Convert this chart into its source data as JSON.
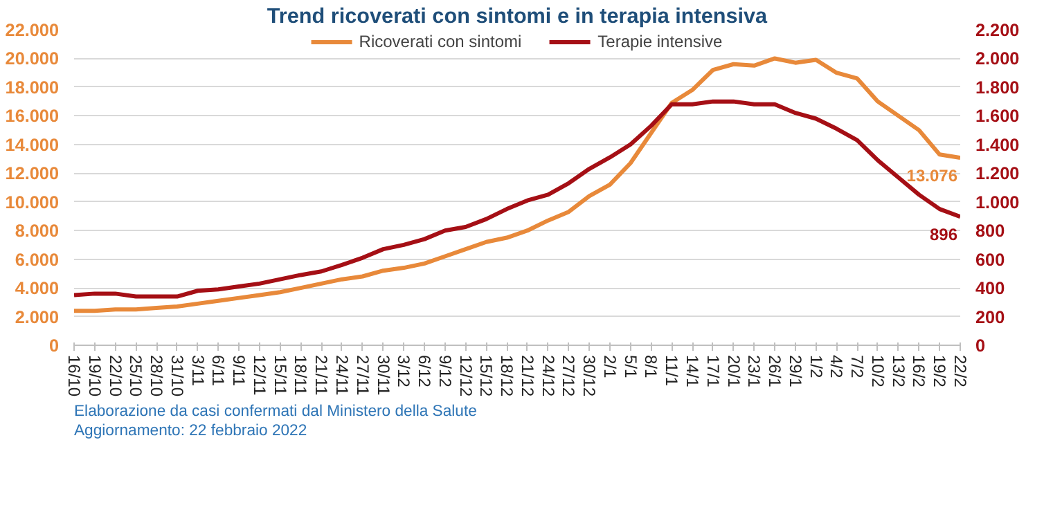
{
  "chart_data": {
    "type": "line",
    "title": "Trend ricoverati con sintomi e in terapia intensiva",
    "x": [
      "2021-10-16",
      "2021-10-19",
      "2021-10-22",
      "2021-10-25",
      "2021-10-28",
      "2021-10-31",
      "2021-11-03",
      "2021-11-06",
      "2021-11-09",
      "2021-11-12",
      "2021-11-15",
      "2021-11-18",
      "2021-11-21",
      "2021-11-24",
      "2021-11-27",
      "2021-11-30",
      "2021-12-03",
      "2021-12-06",
      "2021-12-09",
      "2021-12-12",
      "2021-12-15",
      "2021-12-18",
      "2021-12-21",
      "2021-12-24",
      "2021-12-27",
      "2021-12-30",
      "2022-01-02",
      "2022-01-05",
      "2022-01-08",
      "2022-01-11",
      "2022-01-14",
      "2022-01-17",
      "2022-01-20",
      "2022-01-23",
      "2022-01-26",
      "2022-01-29",
      "2022-02-01",
      "2022-02-04",
      "2022-02-07",
      "2022-02-10",
      "2022-02-13",
      "2022-02-16",
      "2022-02-19",
      "2022-02-22"
    ],
    "series": [
      {
        "name": "Ricoverati con sintomi",
        "color": "#e8893a",
        "values": [
          2400,
          2400,
          2500,
          2500,
          2600,
          2700,
          2900,
          3100,
          3300,
          3500,
          3700,
          4000,
          4300,
          4600,
          4800,
          5200,
          5400,
          5700,
          6200,
          6700,
          7200,
          7500,
          8000,
          8700,
          9300,
          10400,
          11200,
          12700,
          14800,
          16900,
          17800,
          19200,
          19600,
          19500,
          20000,
          19700,
          19900,
          19000,
          18600,
          17000,
          16000,
          15000,
          13300,
          13076
        ],
        "value_labels": [
          null,
          null,
          null,
          null,
          null,
          null,
          null,
          null,
          null,
          null,
          null,
          null,
          null,
          null,
          null,
          null,
          null,
          null,
          null,
          null,
          null,
          null,
          null,
          null,
          null,
          null,
          null,
          null,
          null,
          null,
          null,
          null,
          null,
          null,
          null,
          null,
          null,
          null,
          null,
          null,
          null,
          null,
          null,
          "13.076"
        ]
      },
      {
        "name": "Terapie intensive",
        "color": "#a50f15",
        "axis": "y2",
        "values": [
          350,
          360,
          360,
          340,
          340,
          340,
          380,
          390,
          410,
          430,
          460,
          490,
          515,
          560,
          610,
          670,
          700,
          740,
          800,
          825,
          880,
          950,
          1010,
          1050,
          1130,
          1230,
          1310,
          1400,
          1530,
          1680,
          1680,
          1700,
          1700,
          1680,
          1680,
          1620,
          1580,
          1510,
          1430,
          1290,
          1170,
          1050,
          950,
          896
        ],
        "value_labels": [
          null,
          null,
          null,
          null,
          null,
          null,
          null,
          null,
          null,
          null,
          null,
          null,
          null,
          null,
          null,
          null,
          null,
          null,
          null,
          null,
          null,
          null,
          null,
          null,
          null,
          null,
          null,
          null,
          null,
          null,
          null,
          null,
          null,
          null,
          null,
          null,
          null,
          null,
          null,
          null,
          null,
          null,
          null,
          "896"
        ]
      }
    ],
    "xlim": [
      "2021-10-16",
      "2022-02-22"
    ],
    "xticks": [
      {
        "value": "2021-10-16",
        "label": "16/10"
      },
      {
        "value": "2021-10-19",
        "label": "19/10"
      },
      {
        "value": "2021-10-22",
        "label": "22/10"
      },
      {
        "value": "2021-10-25",
        "label": "25/10"
      },
      {
        "value": "2021-10-28",
        "label": "28/10"
      },
      {
        "value": "2021-10-31",
        "label": "31/10"
      },
      {
        "value": "2021-11-03",
        "label": "3/11"
      },
      {
        "value": "2021-11-06",
        "label": "6/11"
      },
      {
        "value": "2021-11-09",
        "label": "9/11"
      },
      {
        "value": "2021-11-12",
        "label": "12/11"
      },
      {
        "value": "2021-11-15",
        "label": "15/11"
      },
      {
        "value": "2021-11-18",
        "label": "18/11"
      },
      {
        "value": "2021-11-21",
        "label": "21/11"
      },
      {
        "value": "2021-11-24",
        "label": "24/11"
      },
      {
        "value": "2021-11-27",
        "label": "27/11"
      },
      {
        "value": "2021-11-30",
        "label": "30/11"
      },
      {
        "value": "2021-12-03",
        "label": "3/12"
      },
      {
        "value": "2021-12-06",
        "label": "6/12"
      },
      {
        "value": "2021-12-09",
        "label": "9/12"
      },
      {
        "value": "2021-12-12",
        "label": "12/12"
      },
      {
        "value": "2021-12-15",
        "label": "15/12"
      },
      {
        "value": "2021-12-18",
        "label": "18/12"
      },
      {
        "value": "2021-12-21",
        "label": "21/12"
      },
      {
        "value": "2021-12-24",
        "label": "24/12"
      },
      {
        "value": "2021-12-27",
        "label": "27/12"
      },
      {
        "value": "2021-12-30",
        "label": "30/12"
      },
      {
        "value": "2022-01-02",
        "label": "2/1"
      },
      {
        "value": "2022-01-05",
        "label": "5/1"
      },
      {
        "value": "2022-01-08",
        "label": "8/1"
      },
      {
        "value": "2022-01-11",
        "label": "11/1"
      },
      {
        "value": "2022-01-14",
        "label": "14/1"
      },
      {
        "value": "2022-01-17",
        "label": "17/1"
      },
      {
        "value": "2022-01-20",
        "label": "20/1"
      },
      {
        "value": "2022-01-23",
        "label": "23/1"
      },
      {
        "value": "2022-01-26",
        "label": "26/1"
      },
      {
        "value": "2022-01-29",
        "label": "29/1"
      },
      {
        "value": "2022-02-01",
        "label": "1/2"
      },
      {
        "value": "2022-02-04",
        "label": "4/2"
      },
      {
        "value": "2022-02-07",
        "label": "7/2"
      },
      {
        "value": "2022-02-10",
        "label": "10/2"
      },
      {
        "value": "2022-02-13",
        "label": "13/2"
      },
      {
        "value": "2022-02-16",
        "label": "16/2"
      },
      {
        "value": "2022-02-19",
        "label": "19/2"
      },
      {
        "value": "2022-02-22",
        "label": "22/2"
      }
    ],
    "ylim": [
      0,
      22000
    ],
    "yticks": [
      0,
      {
        "value": 2000,
        "label": "2.000"
      },
      {
        "value": 4000,
        "label": "4.000"
      },
      {
        "value": 6000,
        "label": "6.000"
      },
      {
        "value": 8000,
        "label": "8.000"
      },
      {
        "value": 10000,
        "label": "10.000"
      },
      {
        "value": 12000,
        "label": "12.000"
      },
      {
        "value": 14000,
        "label": "14.000"
      },
      {
        "value": 16000,
        "label": "16.000"
      },
      {
        "value": 18000,
        "label": "18.000"
      },
      {
        "value": 20000,
        "label": "20.000"
      },
      {
        "value": 22000,
        "label": "22.000"
      }
    ],
    "y2lim": [
      0,
      2200
    ],
    "y2ticks": [
      0,
      200,
      400,
      600,
      800,
      {
        "value": 1000,
        "label": "1.000"
      },
      {
        "value": 1200,
        "label": "1.200"
      },
      {
        "value": 1400,
        "label": "1.400"
      },
      {
        "value": 1600,
        "label": "1.600"
      },
      {
        "value": 1800,
        "label": "1.800"
      },
      {
        "value": 2000,
        "label": "2.000"
      },
      {
        "value": 2200,
        "label": "2.200"
      }
    ],
    "grid": "y",
    "legend": "top",
    "line_style": "solid",
    "annotations": [
      "Elaborazione da casi confermati dal Ministero della Salute",
      "Aggiornamento: 22 febbraio 2022"
    ]
  }
}
